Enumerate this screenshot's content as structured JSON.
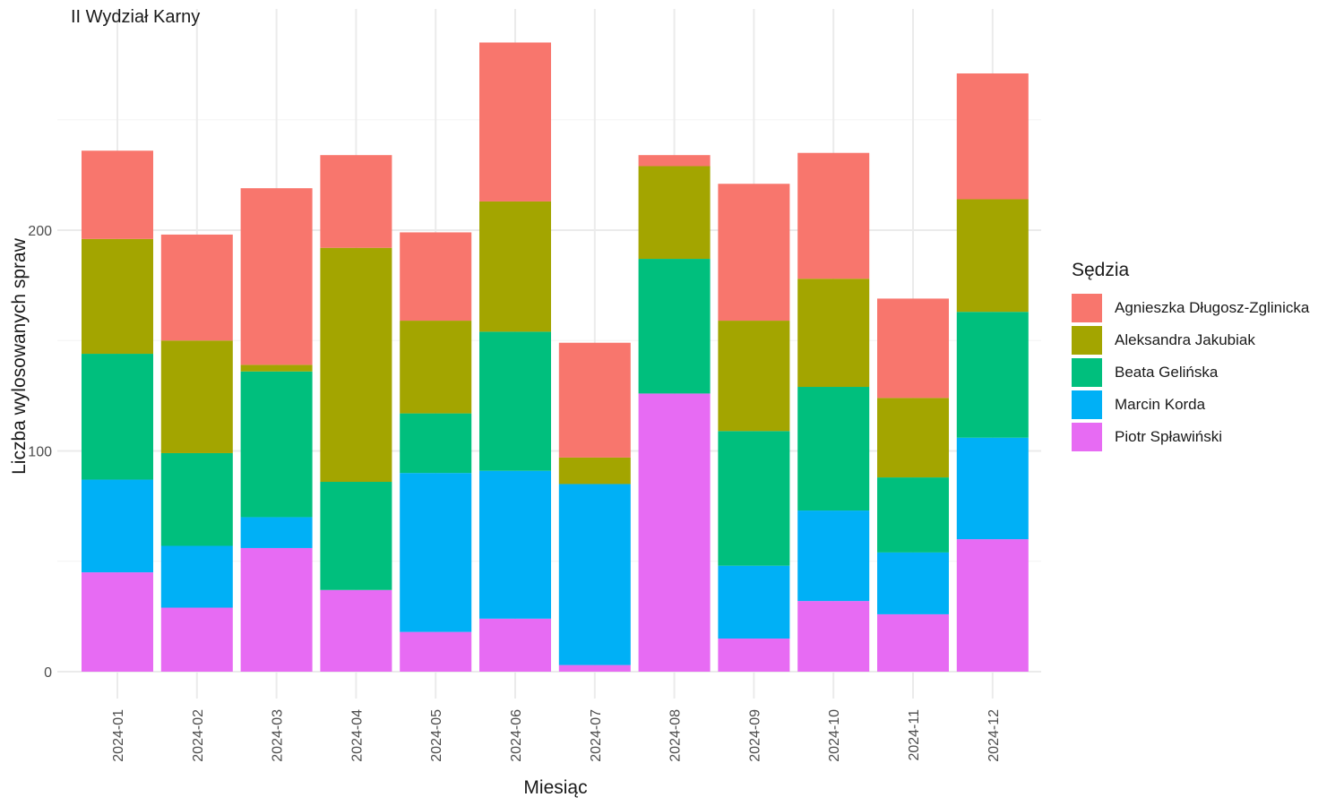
{
  "chart_data": {
    "type": "bar",
    "stacked": true,
    "subtitle": "II Wydział Karny",
    "xlabel": "Miesiąc",
    "ylabel": "Liczba wylosowanych spraw",
    "ylim": [
      0,
      300
    ],
    "yticks": [
      0,
      100,
      200
    ],
    "grid": true,
    "legend_title": "Sędzia",
    "legend_position": "right",
    "categories": [
      "2024-01",
      "2024-02",
      "2024-03",
      "2024-04",
      "2024-05",
      "2024-06",
      "2024-07",
      "2024-08",
      "2024-09",
      "2024-10",
      "2024-11",
      "2024-12"
    ],
    "series": [
      {
        "name": "Piotr Spławiński",
        "color": "#E76BF3",
        "values": [
          45,
          29,
          56,
          37,
          18,
          24,
          3,
          126,
          15,
          32,
          26,
          60
        ]
      },
      {
        "name": "Marcin Korda",
        "color": "#00B0F6",
        "values": [
          42,
          28,
          14,
          0,
          72,
          67,
          82,
          0,
          33,
          41,
          28,
          46
        ]
      },
      {
        "name": "Beata Gelińska",
        "color": "#00BF7D",
        "values": [
          57,
          42,
          66,
          49,
          27,
          63,
          0,
          61,
          61,
          56,
          34,
          57
        ]
      },
      {
        "name": "Aleksandra Jakubiak",
        "color": "#A3A500",
        "values": [
          52,
          51,
          3,
          106,
          42,
          59,
          12,
          42,
          50,
          49,
          36,
          51
        ]
      },
      {
        "name": "Agnieszka Długosz-Zglinicka",
        "color": "#F8766D",
        "values": [
          40,
          48,
          80,
          42,
          40,
          72,
          52,
          5,
          62,
          57,
          45,
          57
        ]
      }
    ]
  }
}
